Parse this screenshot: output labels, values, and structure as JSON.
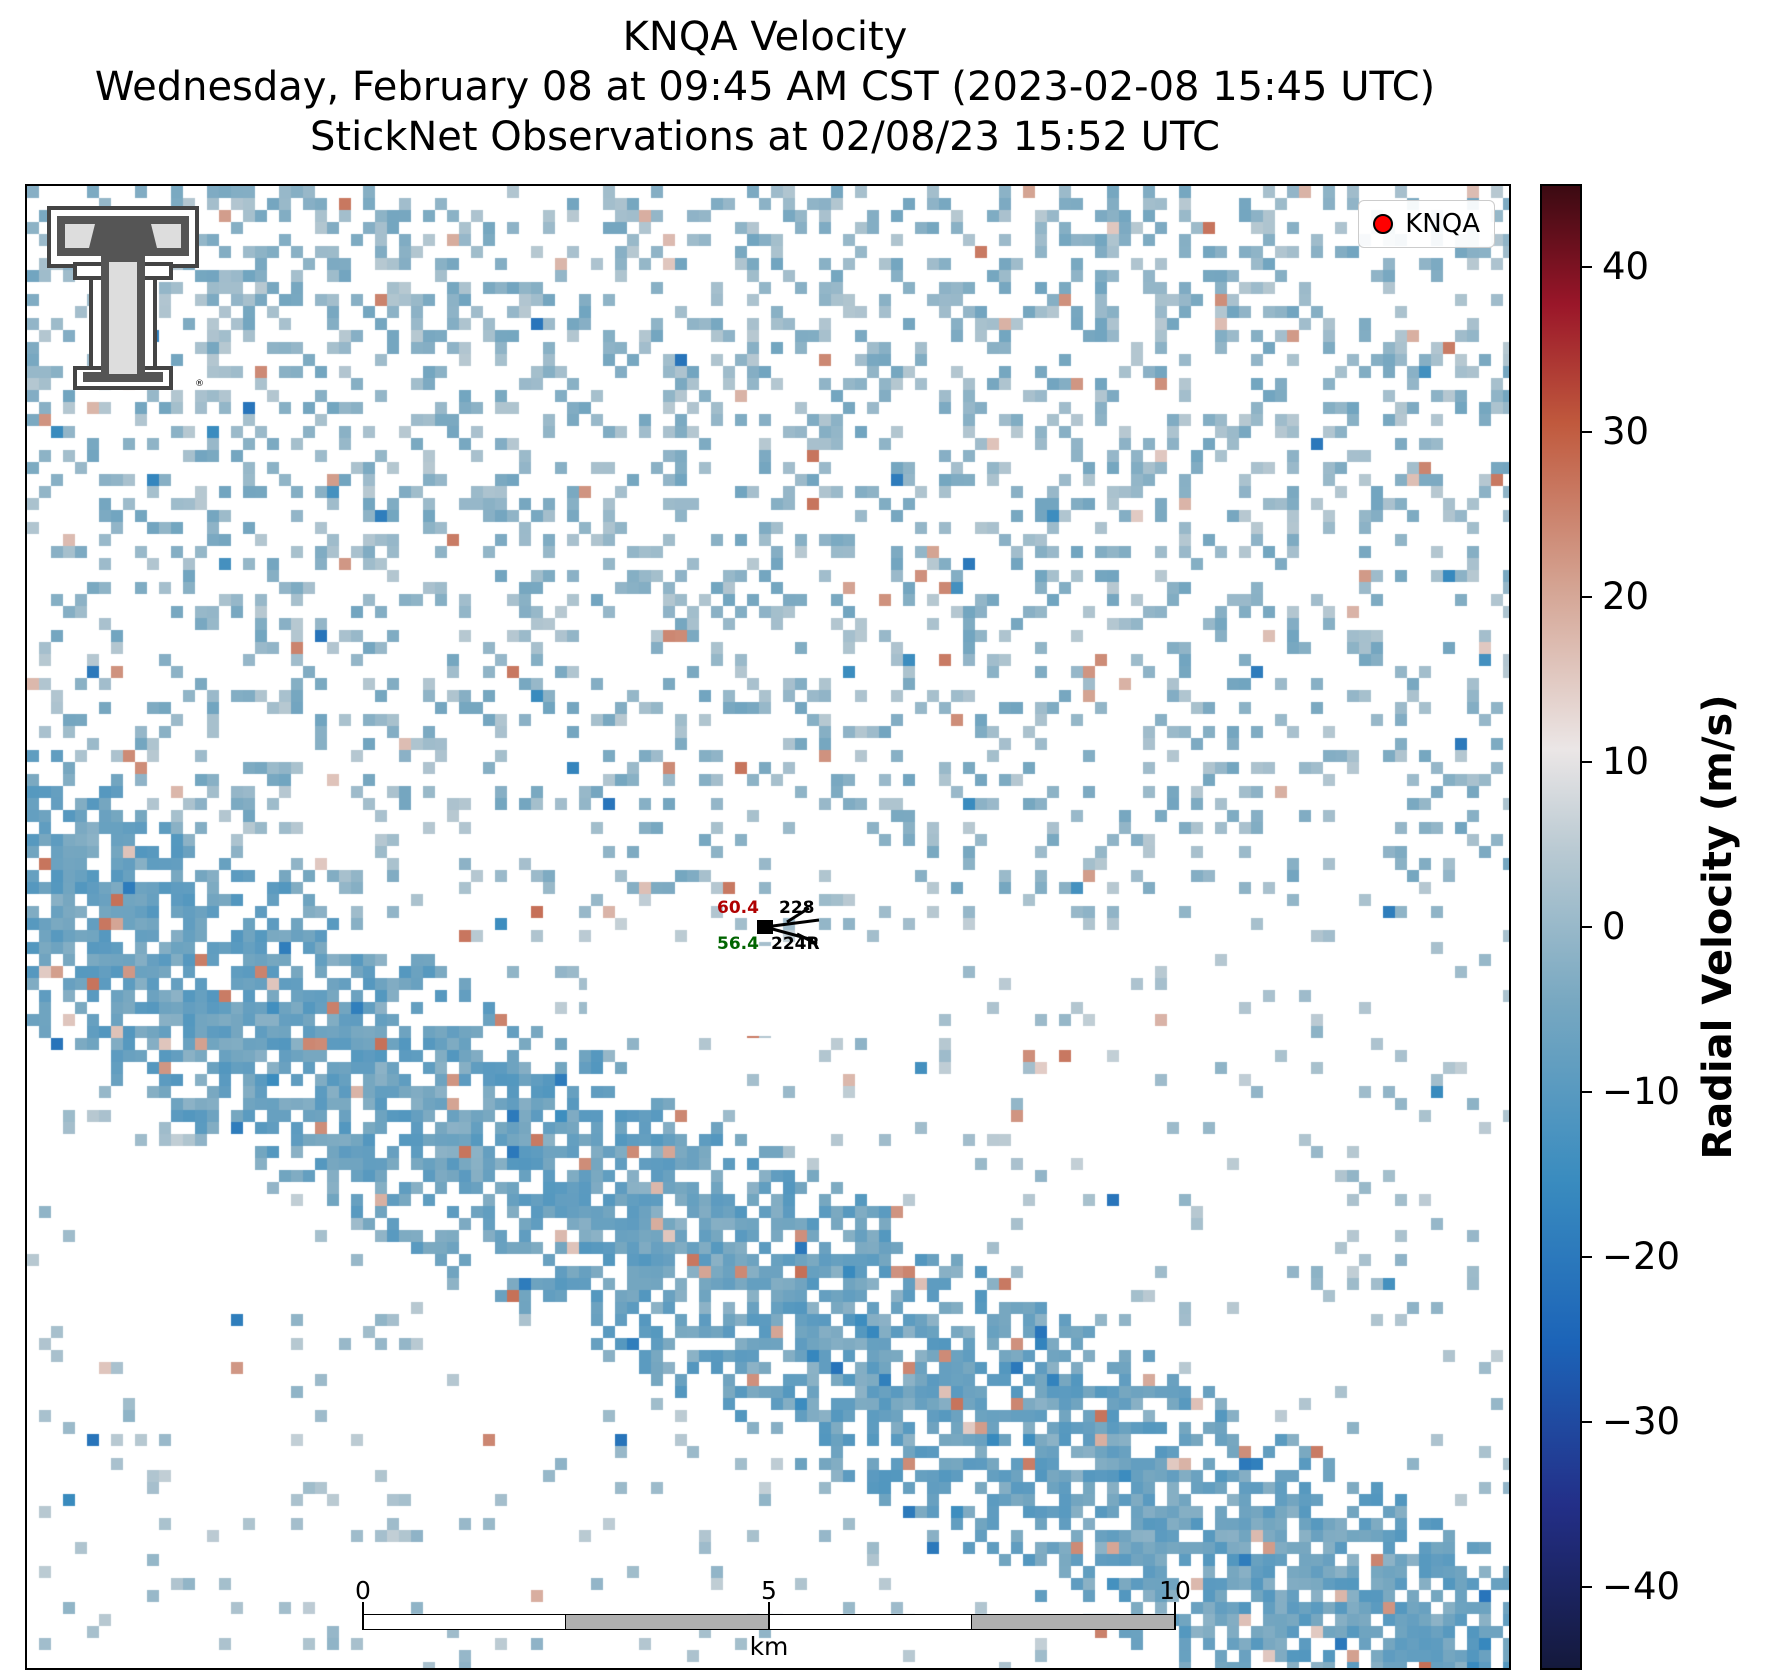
{
  "header": {
    "line1": "KNQA Velocity",
    "line2": "Wednesday, February 08 at 09:45 AM CST (2023-02-08 15:45 UTC)",
    "line3": "StickNet Observations at 02/08/23 15:52 UTC"
  },
  "legend": {
    "label": "KNQA",
    "marker_color": "#ff0000"
  },
  "colorbar": {
    "title": "Radial Velocity (m/s)",
    "range": [
      -45,
      45
    ],
    "ticks": [
      "40",
      "30",
      "20",
      "10",
      "0",
      "−10",
      "−20",
      "−30",
      "−40"
    ],
    "colors": [
      "#14193c",
      "#232f88",
      "#1c64b8",
      "#3a8cbf",
      "#78a8c1",
      "#b8c9d2",
      "#ebe6e6",
      "#d4a392",
      "#c0593d",
      "#9a1629",
      "#3b0a12"
    ]
  },
  "stations": [
    {
      "temp": "60.4",
      "dewpoint": "56.4",
      "dir_top": "228",
      "dir_bottom": "224R",
      "temp_color": "#b00000",
      "dew_color": "#006400"
    }
  ],
  "scale_bar": {
    "labels": [
      "0",
      "5",
      "10"
    ],
    "unit": "km"
  },
  "logo": {
    "name": "texas-tech-double-t-logo"
  }
}
